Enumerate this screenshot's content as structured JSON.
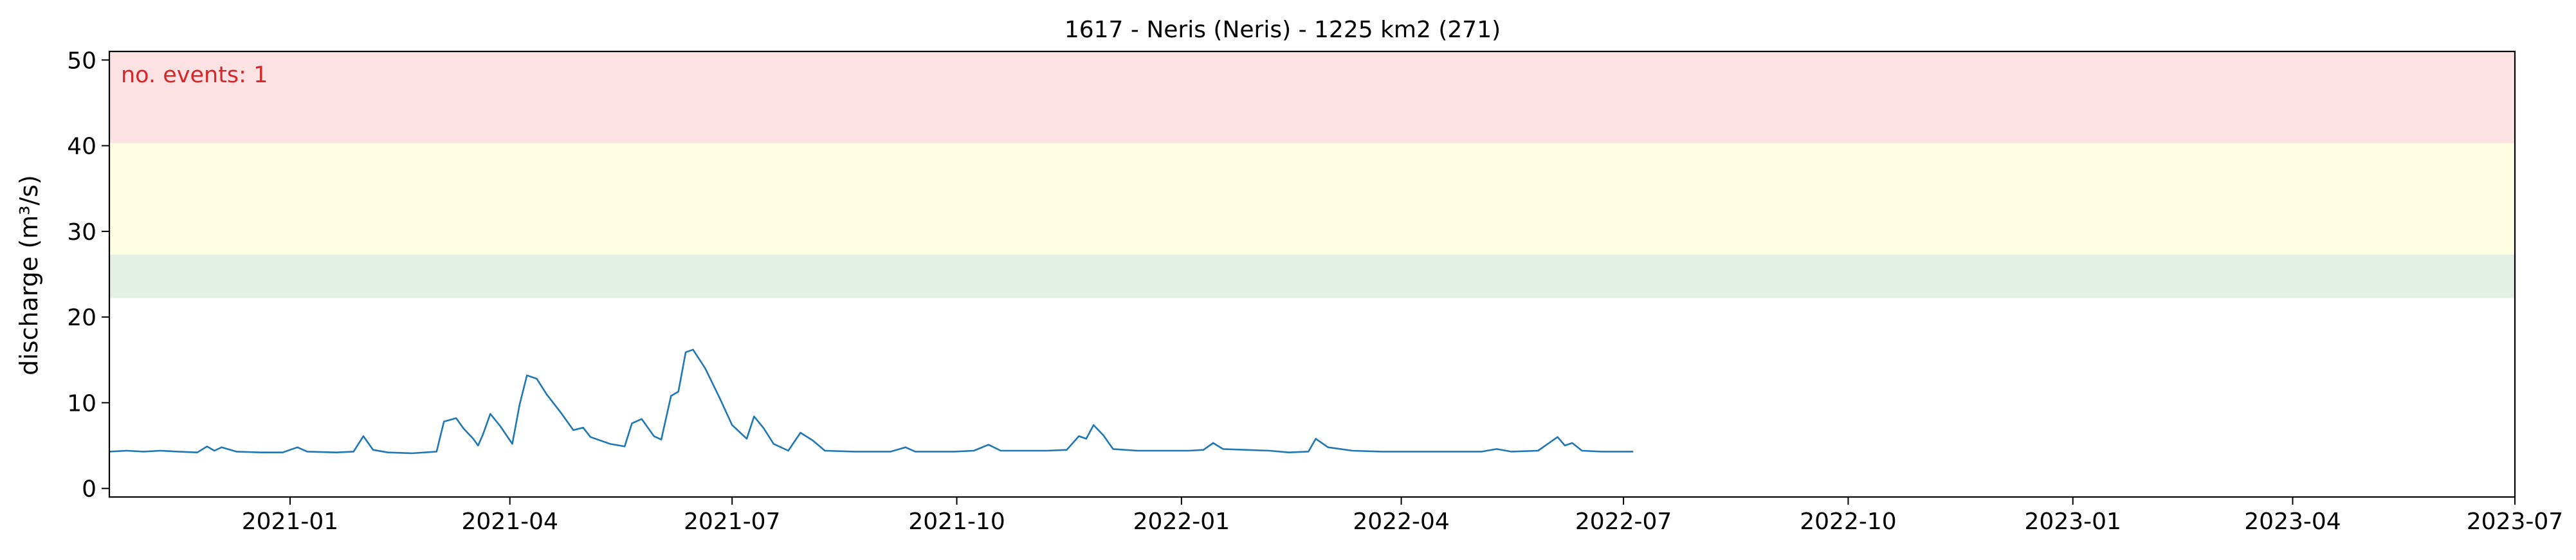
{
  "chart_data": {
    "type": "line",
    "title": "1617 - Neris (Neris) - 1225 km2 (271)",
    "xlabel": "",
    "ylabel": "discharge (m³/s)",
    "xlim": [
      "2020-10-19",
      "2023-07-01"
    ],
    "ylim": [
      -1,
      51
    ],
    "x_ticks": [
      "2021-01",
      "2021-04",
      "2021-07",
      "2021-10",
      "2022-01",
      "2022-04",
      "2022-07",
      "2022-10",
      "2023-01",
      "2023-04",
      "2023-07"
    ],
    "y_ticks": [
      0,
      10,
      20,
      30,
      40,
      50
    ],
    "grid": false,
    "legend": "none",
    "annotation": "no. events: 1",
    "bands": [
      {
        "from": 22.2,
        "to": 27.3,
        "color": "#e5f0e5"
      },
      {
        "from": 27.3,
        "to": 40.3,
        "color": "#fefee3"
      },
      {
        "from": 40.3,
        "to": 51,
        "color": "#fde2e3"
      }
    ],
    "series": [
      {
        "color": "#1f77b4",
        "points": [
          [
            "2020-10-19",
            4.3
          ],
          [
            "2020-10-26",
            4.4
          ],
          [
            "2020-11-02",
            4.3
          ],
          [
            "2020-11-09",
            4.4
          ],
          [
            "2020-11-16",
            4.3
          ],
          [
            "2020-11-24",
            4.2
          ],
          [
            "2020-11-28",
            4.9
          ],
          [
            "2020-12-01",
            4.4
          ],
          [
            "2020-12-04",
            4.8
          ],
          [
            "2020-12-10",
            4.3
          ],
          [
            "2020-12-20",
            4.2
          ],
          [
            "2020-12-29",
            4.2
          ],
          [
            "2021-01-04",
            4.8
          ],
          [
            "2021-01-08",
            4.3
          ],
          [
            "2021-01-20",
            4.2
          ],
          [
            "2021-01-27",
            4.3
          ],
          [
            "2021-01-31",
            6.1
          ],
          [
            "2021-02-04",
            4.5
          ],
          [
            "2021-02-10",
            4.2
          ],
          [
            "2021-02-20",
            4.1
          ],
          [
            "2021-03-02",
            4.3
          ],
          [
            "2021-03-05",
            7.8
          ],
          [
            "2021-03-10",
            8.2
          ],
          [
            "2021-03-13",
            7.0
          ],
          [
            "2021-03-17",
            5.8
          ],
          [
            "2021-03-19",
            5.0
          ],
          [
            "2021-03-21",
            6.3
          ],
          [
            "2021-03-24",
            8.7
          ],
          [
            "2021-03-28",
            7.3
          ],
          [
            "2021-04-02",
            5.2
          ],
          [
            "2021-04-05",
            9.8
          ],
          [
            "2021-04-08",
            13.2
          ],
          [
            "2021-04-12",
            12.8
          ],
          [
            "2021-04-16",
            11.0
          ],
          [
            "2021-04-22",
            8.8
          ],
          [
            "2021-04-27",
            6.8
          ],
          [
            "2021-05-01",
            7.1
          ],
          [
            "2021-05-04",
            6.0
          ],
          [
            "2021-05-12",
            5.2
          ],
          [
            "2021-05-18",
            4.9
          ],
          [
            "2021-05-21",
            7.6
          ],
          [
            "2021-05-25",
            8.1
          ],
          [
            "2021-05-30",
            6.1
          ],
          [
            "2021-06-02",
            5.7
          ],
          [
            "2021-06-06",
            10.8
          ],
          [
            "2021-06-09",
            11.3
          ],
          [
            "2021-06-12",
            15.9
          ],
          [
            "2021-06-15",
            16.2
          ],
          [
            "2021-06-20",
            14.0
          ],
          [
            "2021-06-26",
            10.5
          ],
          [
            "2021-07-01",
            7.4
          ],
          [
            "2021-07-07",
            5.8
          ],
          [
            "2021-07-10",
            8.4
          ],
          [
            "2021-07-14",
            7.0
          ],
          [
            "2021-07-18",
            5.2
          ],
          [
            "2021-07-24",
            4.4
          ],
          [
            "2021-07-29",
            6.5
          ],
          [
            "2021-08-03",
            5.6
          ],
          [
            "2021-08-08",
            4.4
          ],
          [
            "2021-08-20",
            4.3
          ],
          [
            "2021-09-04",
            4.3
          ],
          [
            "2021-09-10",
            4.8
          ],
          [
            "2021-09-14",
            4.3
          ],
          [
            "2021-09-30",
            4.3
          ],
          [
            "2021-10-08",
            4.4
          ],
          [
            "2021-10-14",
            5.1
          ],
          [
            "2021-10-19",
            4.4
          ],
          [
            "2021-11-07",
            4.4
          ],
          [
            "2021-11-15",
            4.5
          ],
          [
            "2021-11-20",
            6.1
          ],
          [
            "2021-11-23",
            5.8
          ],
          [
            "2021-11-26",
            7.4
          ],
          [
            "2021-11-30",
            6.2
          ],
          [
            "2021-12-04",
            4.6
          ],
          [
            "2021-12-14",
            4.4
          ],
          [
            "2021-12-25",
            4.4
          ],
          [
            "2022-01-04",
            4.4
          ],
          [
            "2022-01-10",
            4.5
          ],
          [
            "2022-01-14",
            5.3
          ],
          [
            "2022-01-18",
            4.6
          ],
          [
            "2022-02-06",
            4.4
          ],
          [
            "2022-02-14",
            4.2
          ],
          [
            "2022-02-22",
            4.3
          ],
          [
            "2022-02-25",
            5.8
          ],
          [
            "2022-03-02",
            4.8
          ],
          [
            "2022-03-12",
            4.4
          ],
          [
            "2022-03-24",
            4.3
          ],
          [
            "2022-04-04",
            4.3
          ],
          [
            "2022-04-15",
            4.3
          ],
          [
            "2022-04-25",
            4.3
          ],
          [
            "2022-05-04",
            4.3
          ],
          [
            "2022-05-10",
            4.6
          ],
          [
            "2022-05-16",
            4.3
          ],
          [
            "2022-05-27",
            4.4
          ],
          [
            "2022-06-04",
            6.0
          ],
          [
            "2022-06-07",
            5.0
          ],
          [
            "2022-06-10",
            5.3
          ],
          [
            "2022-06-14",
            4.4
          ],
          [
            "2022-06-22",
            4.3
          ],
          [
            "2022-06-30",
            4.3
          ],
          [
            "2022-07-05",
            4.3
          ]
        ]
      }
    ]
  }
}
